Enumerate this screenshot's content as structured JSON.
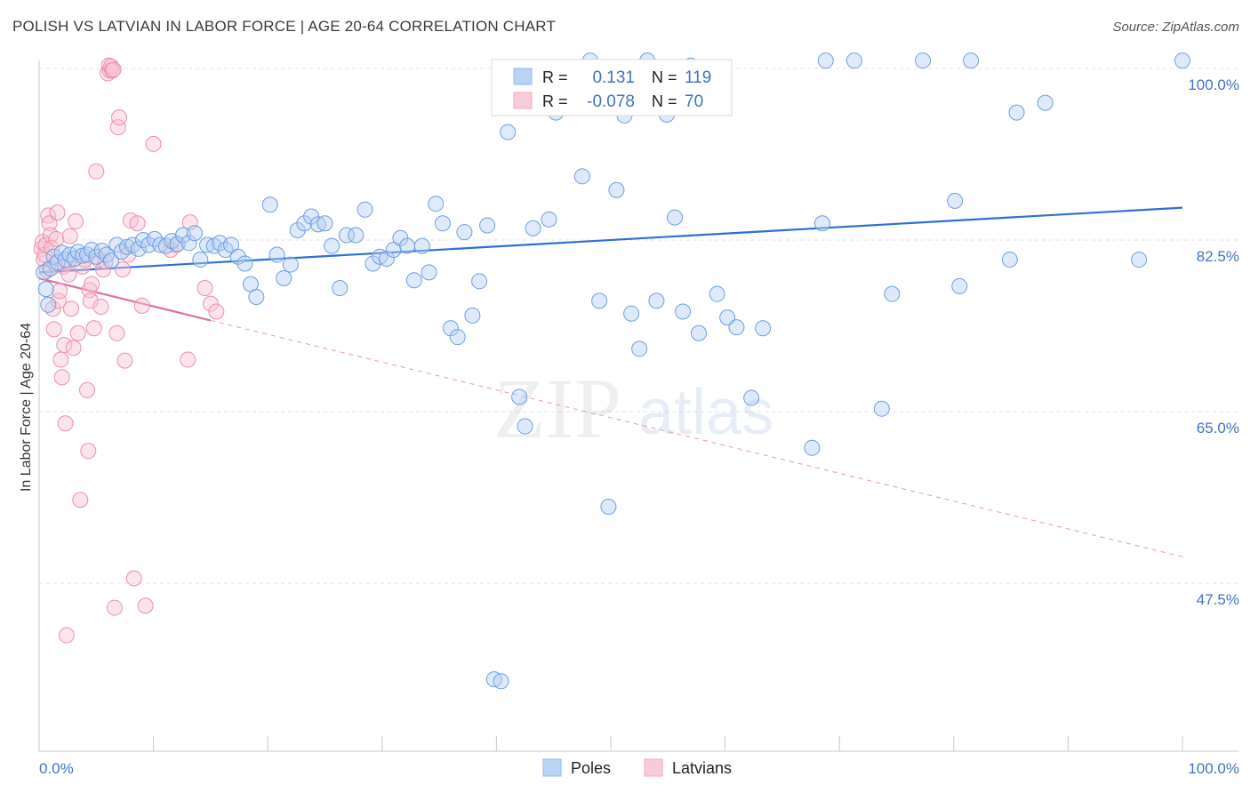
{
  "title": "POLISH VS LATVIAN IN LABOR FORCE | AGE 20-64 CORRELATION CHART",
  "source": "Source: ZipAtlas.com",
  "watermark": {
    "zip": "ZIP",
    "atlas": "atlas"
  },
  "legend": {
    "r_label": "R =",
    "n_label": "N =",
    "items": [
      {
        "r": "0.131",
        "n": "119",
        "color": "#8fb8ee"
      },
      {
        "r": "-0.078",
        "n": "70",
        "color": "#f4a9c0"
      }
    ]
  },
  "bottom_legend": [
    {
      "label": "Poles",
      "color": "#8fb8ee"
    },
    {
      "label": "Latvians",
      "color": "#f4a9c0"
    }
  ],
  "chart_data": {
    "type": "scatter",
    "title": "POLISH VS LATVIAN IN LABOR FORCE | AGE 20-64 CORRELATION CHART",
    "xlabel": "",
    "ylabel": "In Labor Force | Age 20-64",
    "xlim": [
      0,
      100
    ],
    "ylim": [
      31,
      103
    ],
    "x_tick_labels": [
      "0.0%",
      "100.0%"
    ],
    "y_ticks": [
      47.5,
      65.0,
      82.5,
      100.0
    ],
    "y_tick_labels": [
      "47.5%",
      "65.0%",
      "82.5%",
      "100.0%"
    ],
    "grid": true,
    "series": [
      {
        "name": "Poles",
        "color": "#8fb8ee",
        "trend": {
          "x": [
            0,
            100
          ],
          "y": [
            79.2,
            85.8
          ],
          "style": "solid"
        },
        "points": [
          [
            0.4,
            79.2
          ],
          [
            0.6,
            77.5
          ],
          [
            0.8,
            75.9
          ],
          [
            1.0,
            79.6
          ],
          [
            1.3,
            80.8
          ],
          [
            1.6,
            80.2
          ],
          [
            2.0,
            81.2
          ],
          [
            2.3,
            80.5
          ],
          [
            2.7,
            81.0
          ],
          [
            3.1,
            80.6
          ],
          [
            3.4,
            81.3
          ],
          [
            3.8,
            80.9
          ],
          [
            4.2,
            81.0
          ],
          [
            4.6,
            81.5
          ],
          [
            5.0,
            80.8
          ],
          [
            5.5,
            81.4
          ],
          [
            5.9,
            81.0
          ],
          [
            6.3,
            80.4
          ],
          [
            6.8,
            82.0
          ],
          [
            7.2,
            81.3
          ],
          [
            7.7,
            81.8
          ],
          [
            8.2,
            82.0
          ],
          [
            8.7,
            81.6
          ],
          [
            9.1,
            82.5
          ],
          [
            9.6,
            82.0
          ],
          [
            10.1,
            82.6
          ],
          [
            10.6,
            82.0
          ],
          [
            11.1,
            81.9
          ],
          [
            11.6,
            82.4
          ],
          [
            12.1,
            82.1
          ],
          [
            12.6,
            83.0
          ],
          [
            13.1,
            82.2
          ],
          [
            13.6,
            83.2
          ],
          [
            14.1,
            80.5
          ],
          [
            14.7,
            82.0
          ],
          [
            15.3,
            81.9
          ],
          [
            15.8,
            82.2
          ],
          [
            16.3,
            81.5
          ],
          [
            16.8,
            82.0
          ],
          [
            17.4,
            80.8
          ],
          [
            18.0,
            80.1
          ],
          [
            18.5,
            78.0
          ],
          [
            19.0,
            76.7
          ],
          [
            20.2,
            86.1
          ],
          [
            20.8,
            81.0
          ],
          [
            21.4,
            78.6
          ],
          [
            22.0,
            80.0
          ],
          [
            22.6,
            83.5
          ],
          [
            23.2,
            84.2
          ],
          [
            23.8,
            84.9
          ],
          [
            24.4,
            84.1
          ],
          [
            25.0,
            84.2
          ],
          [
            25.6,
            81.9
          ],
          [
            26.3,
            77.6
          ],
          [
            26.9,
            83.0
          ],
          [
            27.7,
            83.0
          ],
          [
            28.5,
            85.6
          ],
          [
            29.2,
            80.1
          ],
          [
            29.8,
            80.8
          ],
          [
            30.4,
            80.6
          ],
          [
            31.0,
            81.5
          ],
          [
            31.6,
            82.7
          ],
          [
            32.2,
            81.9
          ],
          [
            32.8,
            78.4
          ],
          [
            33.5,
            81.9
          ],
          [
            34.1,
            79.2
          ],
          [
            34.7,
            86.2
          ],
          [
            35.3,
            84.2
          ],
          [
            36.0,
            73.5
          ],
          [
            36.6,
            72.6
          ],
          [
            37.2,
            83.3
          ],
          [
            37.9,
            74.8
          ],
          [
            38.5,
            78.3
          ],
          [
            39.2,
            84.0
          ],
          [
            39.8,
            37.7
          ],
          [
            40.4,
            37.5
          ],
          [
            41.0,
            93.5
          ],
          [
            42.0,
            66.5
          ],
          [
            42.5,
            63.5
          ],
          [
            43.2,
            83.7
          ],
          [
            43.9,
            99.0
          ],
          [
            44.6,
            84.6
          ],
          [
            45.2,
            95.5
          ],
          [
            46.8,
            97.0
          ],
          [
            47.5,
            89.0
          ],
          [
            48.2,
            100.8
          ],
          [
            49.0,
            76.3
          ],
          [
            49.8,
            55.3
          ],
          [
            50.5,
            87.6
          ],
          [
            51.2,
            95.2
          ],
          [
            51.8,
            75.0
          ],
          [
            52.5,
            71.4
          ],
          [
            53.2,
            100.8
          ],
          [
            54.0,
            76.3
          ],
          [
            54.9,
            95.3
          ],
          [
            55.6,
            84.8
          ],
          [
            56.3,
            75.2
          ],
          [
            57.0,
            100.3
          ],
          [
            57.7,
            73.0
          ],
          [
            59.3,
            77.0
          ],
          [
            60.2,
            74.6
          ],
          [
            61.0,
            73.6
          ],
          [
            62.3,
            66.4
          ],
          [
            63.3,
            73.5
          ],
          [
            67.6,
            61.3
          ],
          [
            68.5,
            84.2
          ],
          [
            68.8,
            100.8
          ],
          [
            71.3,
            100.8
          ],
          [
            73.7,
            65.3
          ],
          [
            74.6,
            77.0
          ],
          [
            77.3,
            100.8
          ],
          [
            80.1,
            86.5
          ],
          [
            80.5,
            77.8
          ],
          [
            81.5,
            100.8
          ],
          [
            84.9,
            80.5
          ],
          [
            85.5,
            95.5
          ],
          [
            88.0,
            96.5
          ],
          [
            96.2,
            80.5
          ],
          [
            100.0,
            100.8
          ]
        ]
      },
      {
        "name": "Latvians",
        "color": "#f4a9c0",
        "trend": {
          "x": [
            0,
            15
          ],
          "y": [
            78.6,
            74.3
          ],
          "x_dashed_end": 100,
          "y_dashed_end": 50.2,
          "style": "solid-then-dashed"
        },
        "points": [
          [
            0.2,
            81.6
          ],
          [
            0.3,
            82.3
          ],
          [
            0.4,
            80.5
          ],
          [
            0.5,
            81.0
          ],
          [
            0.6,
            82.0
          ],
          [
            0.7,
            79.4
          ],
          [
            0.8,
            85.0
          ],
          [
            0.9,
            84.2
          ],
          [
            1.0,
            83.0
          ],
          [
            1.1,
            81.7
          ],
          [
            1.2,
            75.5
          ],
          [
            1.3,
            73.4
          ],
          [
            1.4,
            80.0
          ],
          [
            1.5,
            82.6
          ],
          [
            1.6,
            85.3
          ],
          [
            1.7,
            76.3
          ],
          [
            1.8,
            77.3
          ],
          [
            1.9,
            70.3
          ],
          [
            2.0,
            68.5
          ],
          [
            2.1,
            79.8
          ],
          [
            2.2,
            71.8
          ],
          [
            2.3,
            63.8
          ],
          [
            2.4,
            42.2
          ],
          [
            2.5,
            80.3
          ],
          [
            2.6,
            79.0
          ],
          [
            2.7,
            82.9
          ],
          [
            2.8,
            75.5
          ],
          [
            3.0,
            71.5
          ],
          [
            3.2,
            84.4
          ],
          [
            3.4,
            73.0
          ],
          [
            3.6,
            56.0
          ],
          [
            3.8,
            79.8
          ],
          [
            4.0,
            80.5
          ],
          [
            4.2,
            67.2
          ],
          [
            4.3,
            61.0
          ],
          [
            4.4,
            77.4
          ],
          [
            4.5,
            76.3
          ],
          [
            4.6,
            78.0
          ],
          [
            4.8,
            73.5
          ],
          [
            5.0,
            89.5
          ],
          [
            5.2,
            80.5
          ],
          [
            5.4,
            75.7
          ],
          [
            5.6,
            79.5
          ],
          [
            5.8,
            80.3
          ],
          [
            6.0,
            99.5
          ],
          [
            6.1,
            100.3
          ],
          [
            6.2,
            99.8
          ],
          [
            6.3,
            100.2
          ],
          [
            6.4,
            99.8
          ],
          [
            6.5,
            99.9
          ],
          [
            6.6,
            45.0
          ],
          [
            6.8,
            73.0
          ],
          [
            6.9,
            94.0
          ],
          [
            7.0,
            95.0
          ],
          [
            7.3,
            79.5
          ],
          [
            7.5,
            70.2
          ],
          [
            7.8,
            81.0
          ],
          [
            8.0,
            84.5
          ],
          [
            8.3,
            48.0
          ],
          [
            8.6,
            84.2
          ],
          [
            9.0,
            75.8
          ],
          [
            9.3,
            45.2
          ],
          [
            10.0,
            92.3
          ],
          [
            11.5,
            81.5
          ],
          [
            12.0,
            82.0
          ],
          [
            13.0,
            70.3
          ],
          [
            13.2,
            84.3
          ],
          [
            14.5,
            77.6
          ],
          [
            15.0,
            76.0
          ],
          [
            15.5,
            75.2
          ]
        ]
      }
    ]
  }
}
